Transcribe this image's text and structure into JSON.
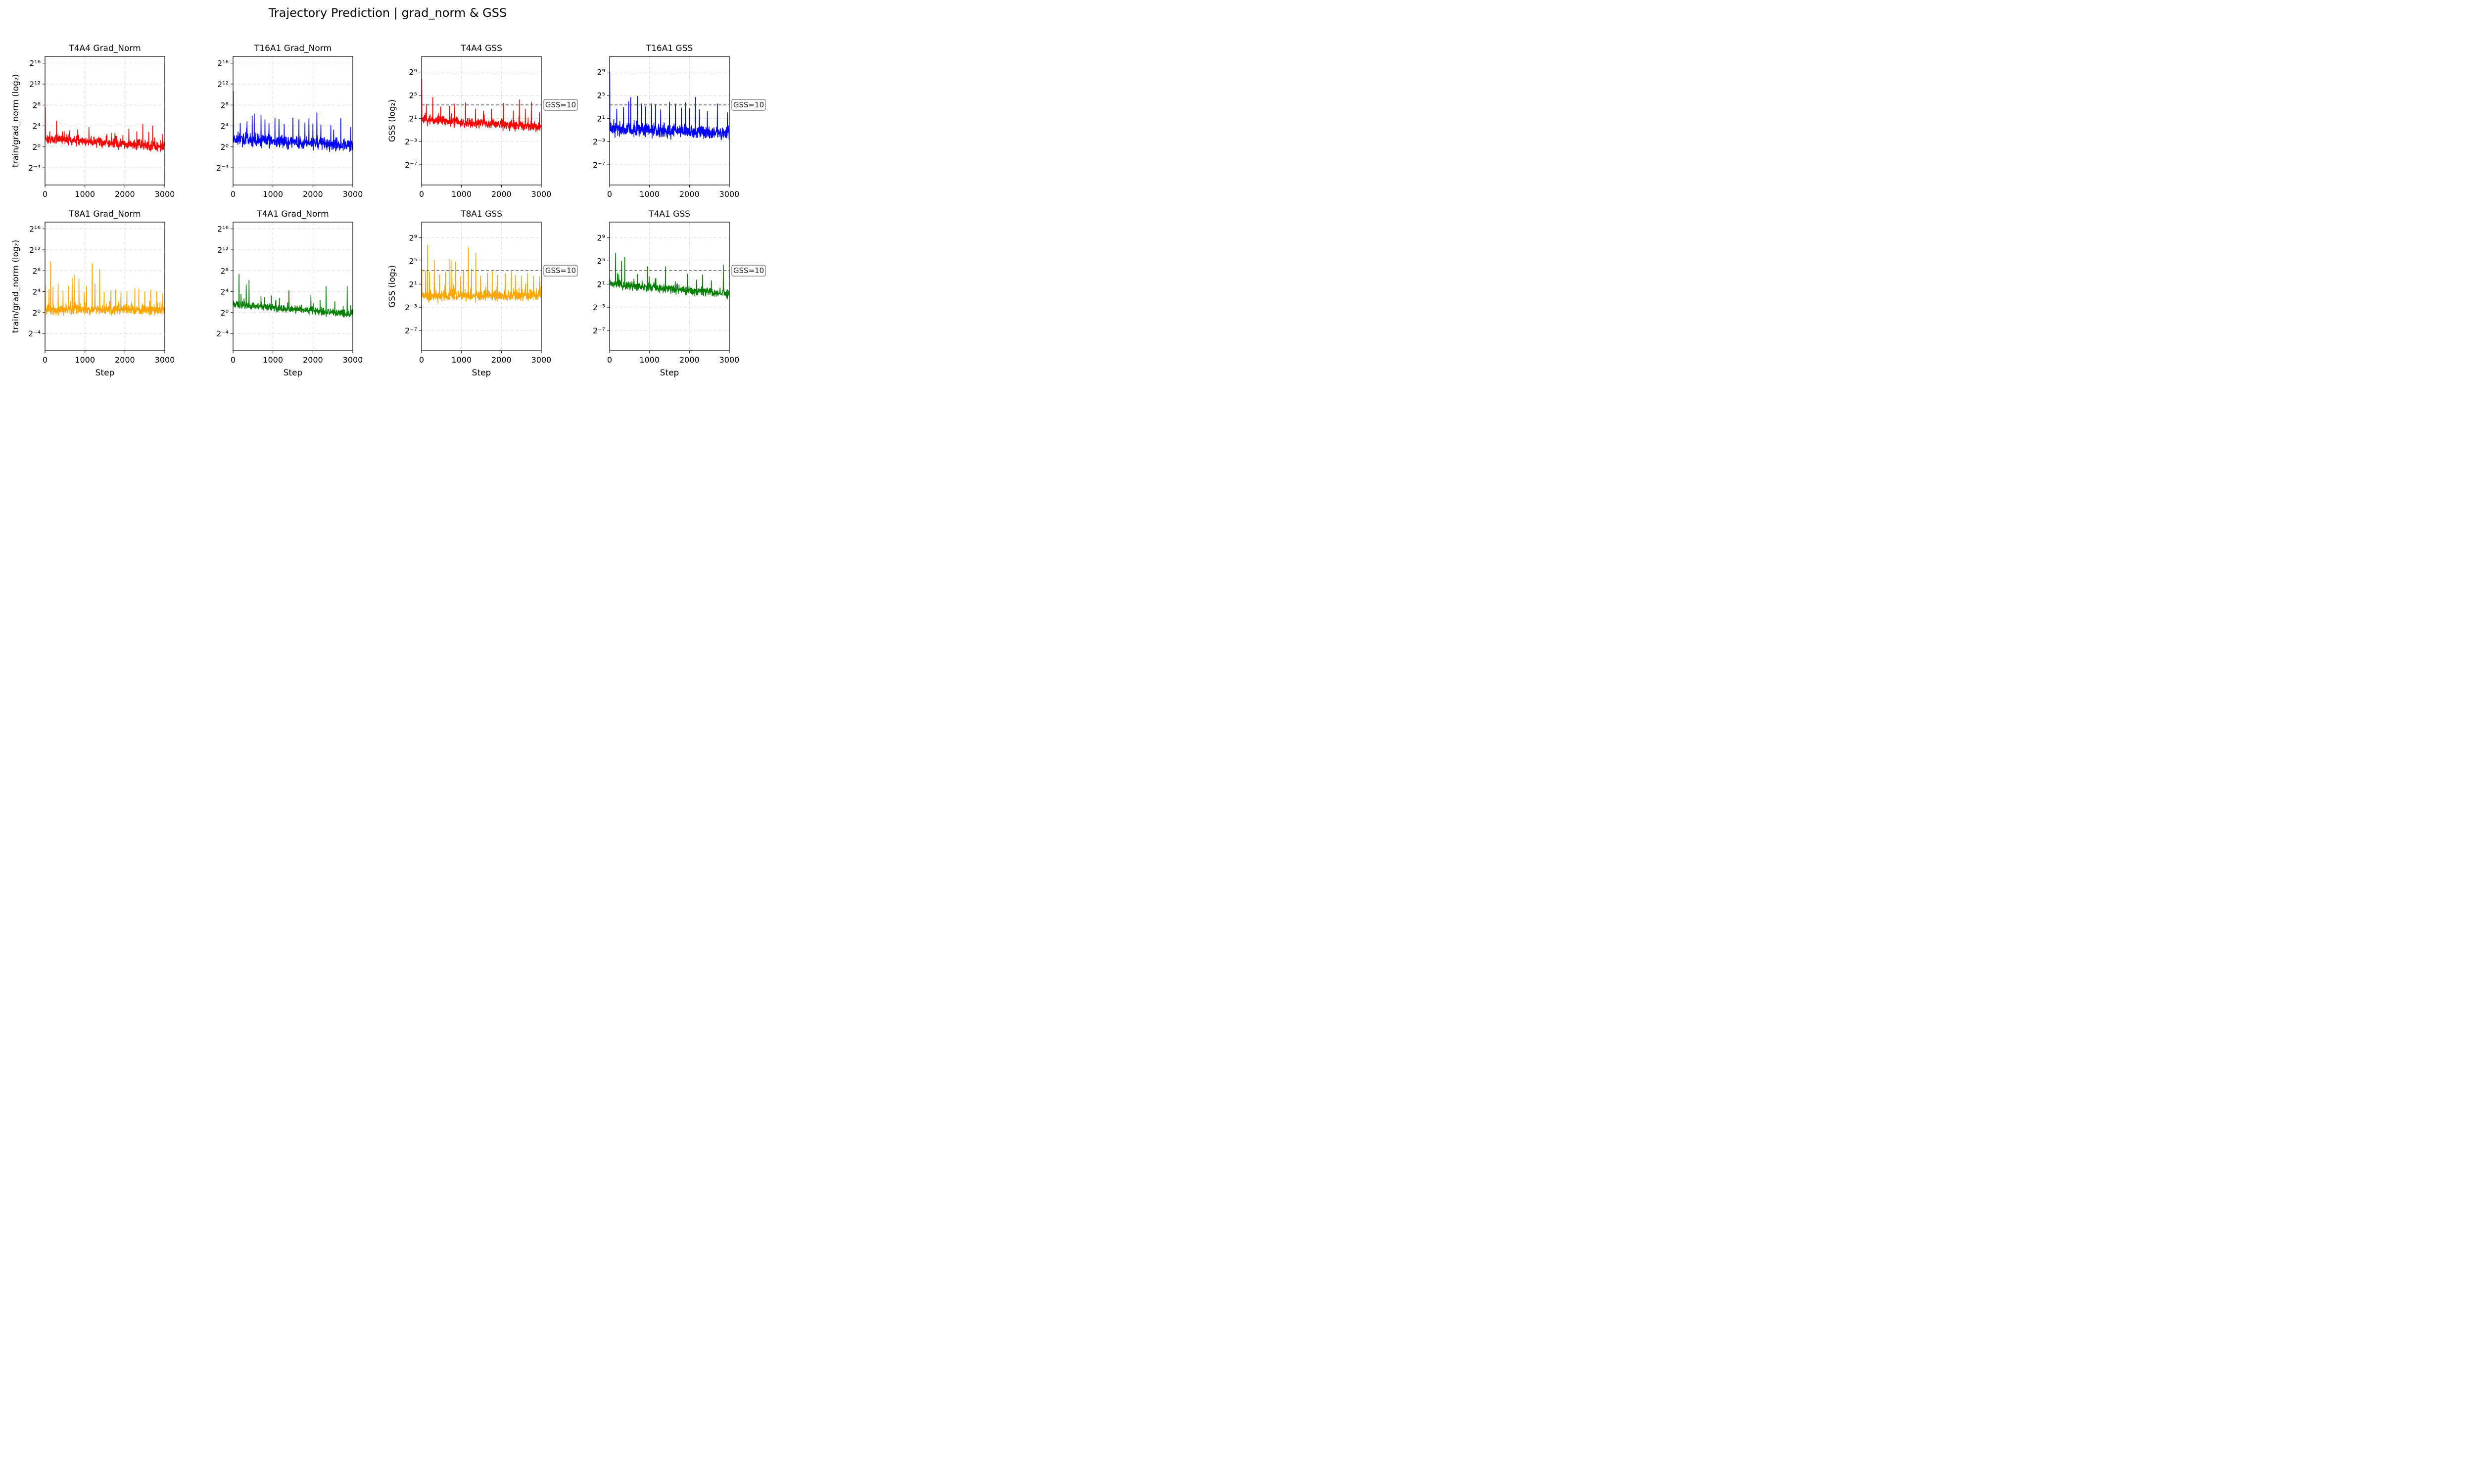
{
  "figure": {
    "title": "Trajectory Prediction | grad_norm & GSS"
  },
  "chart_data": [
    {
      "type": "line",
      "metric": "grad_norm",
      "title": "T4A4 Grad_Norm",
      "color": "#ff0000",
      "xlabel": "",
      "ylabel": "train/grad_norm (log₂)",
      "yscale": "log2",
      "xlim": [
        0,
        3000
      ],
      "ylim_log2": [
        -7.3,
        17.3
      ],
      "xticks": [
        0,
        1000,
        2000,
        3000
      ],
      "yticks_log2": [
        -4,
        0,
        4,
        8,
        12,
        16
      ],
      "series": [
        {
          "name": "T4A4",
          "summary": {
            "start_log2": 1.6,
            "end_log2": 0.0,
            "noise_log2": 0.45,
            "min_log2": -0.9
          },
          "initial_spike": [
            0,
            7.6
          ],
          "spikes": [
            [
              120,
              2.9
            ],
            [
              290,
              4.9
            ],
            [
              480,
              3.0
            ],
            [
              620,
              3.1
            ],
            [
              820,
              3.3
            ],
            [
              1100,
              3.7
            ],
            [
              1550,
              2.4
            ],
            [
              1750,
              2.6
            ],
            [
              1950,
              2.2
            ],
            [
              2100,
              3.4
            ],
            [
              2300,
              2.9
            ],
            [
              2450,
              4.3
            ],
            [
              2600,
              2.8
            ],
            [
              2700,
              4.0
            ],
            [
              2950,
              2.4
            ]
          ]
        }
      ]
    },
    {
      "type": "line",
      "metric": "grad_norm",
      "title": "T16A1 Grad_Norm",
      "color": "#0000ff",
      "xlabel": "",
      "ylabel": "",
      "yscale": "log2",
      "xlim": [
        0,
        3000
      ],
      "ylim_log2": [
        -7.3,
        17.3
      ],
      "xticks": [
        0,
        1000,
        2000,
        3000
      ],
      "yticks_log2": [
        -4,
        0,
        4,
        8,
        12,
        16
      ],
      "series": [
        {
          "name": "T16A1",
          "summary": {
            "start_log2": 1.5,
            "end_log2": 0.3,
            "noise_log2": 0.6,
            "min_log2": -1.3
          },
          "initial_spike": [
            10,
            10.6
          ],
          "spikes": [
            [
              180,
              4.5
            ],
            [
              350,
              4.8
            ],
            [
              480,
              5.9
            ],
            [
              530,
              6.3
            ],
            [
              700,
              6.1
            ],
            [
              800,
              5.2
            ],
            [
              900,
              4.5
            ],
            [
              1050,
              5.5
            ],
            [
              1150,
              5.3
            ],
            [
              1280,
              4.3
            ],
            [
              1500,
              5.5
            ],
            [
              1650,
              5.2
            ],
            [
              1800,
              4.6
            ],
            [
              1900,
              5.4
            ],
            [
              2000,
              4.4
            ],
            [
              2100,
              6.5
            ],
            [
              2200,
              4.2
            ],
            [
              2450,
              4.1
            ],
            [
              2700,
              5.4
            ],
            [
              2950,
              3.7
            ]
          ]
        }
      ]
    },
    {
      "type": "line",
      "metric": "GSS",
      "title": "T4A4 GSS",
      "color": "#ff0000",
      "xlabel": "",
      "ylabel": "GSS (log₂)",
      "yscale": "log2",
      "xlim": [
        0,
        3000
      ],
      "ylim_log2": [
        -10.5,
        11.7
      ],
      "xticks": [
        0,
        1000,
        2000,
        3000
      ],
      "yticks_log2": [
        -7,
        -3,
        1,
        5,
        9
      ],
      "reference_line": {
        "y": 10,
        "label": "GSS=10"
      },
      "series": [
        {
          "name": "T4A4",
          "summary": {
            "start_log2": 0.8,
            "end_log2": -0.5,
            "noise_log2": 0.4,
            "min_log2": -1.7
          },
          "initial_spike": [
            10,
            7.8
          ],
          "spikes": [
            [
              120,
              3.4
            ],
            [
              280,
              4.6
            ],
            [
              480,
              3.0
            ],
            [
              700,
              3.1
            ],
            [
              830,
              3.5
            ],
            [
              1100,
              3.7
            ],
            [
              1350,
              2.6
            ],
            [
              1550,
              2.3
            ],
            [
              1750,
              2.6
            ],
            [
              2050,
              3.6
            ],
            [
              2300,
              2.3
            ],
            [
              2450,
              4.2
            ],
            [
              2600,
              2.6
            ],
            [
              2750,
              3.8
            ],
            [
              2950,
              2.0
            ]
          ]
        }
      ]
    },
    {
      "type": "line",
      "metric": "GSS",
      "title": "T16A1 GSS",
      "color": "#0000ff",
      "xlabel": "",
      "ylabel": "",
      "yscale": "log2",
      "xlim": [
        0,
        3000
      ],
      "ylim_log2": [
        -10.5,
        11.7
      ],
      "xticks": [
        0,
        1000,
        2000,
        3000
      ],
      "yticks_log2": [
        -7,
        -3,
        1,
        5,
        9
      ],
      "reference_line": {
        "y": 10,
        "label": "GSS=10"
      },
      "series": [
        {
          "name": "T16A1",
          "summary": {
            "start_log2": -0.8,
            "end_log2": -1.5,
            "noise_log2": 0.55,
            "min_log2": -3.3
          },
          "initial_spike": [
            10,
            9.0
          ],
          "spikes": [
            [
              180,
              2.6
            ],
            [
              350,
              2.9
            ],
            [
              480,
              3.9
            ],
            [
              530,
              4.6
            ],
            [
              700,
              4.8
            ],
            [
              800,
              3.5
            ],
            [
              900,
              3.0
            ],
            [
              1050,
              3.5
            ],
            [
              1150,
              3.4
            ],
            [
              1280,
              2.5
            ],
            [
              1500,
              3.8
            ],
            [
              1650,
              3.5
            ],
            [
              1800,
              2.8
            ],
            [
              1900,
              3.7
            ],
            [
              2000,
              2.7
            ],
            [
              2150,
              4.6
            ],
            [
              2250,
              2.5
            ],
            [
              2450,
              2.2
            ],
            [
              2700,
              3.5
            ],
            [
              2950,
              2.0
            ]
          ]
        }
      ]
    },
    {
      "type": "line",
      "metric": "grad_norm",
      "title": "T8A1 Grad_Norm",
      "color": "#ffa500",
      "xlabel": "Step",
      "ylabel": "train/grad_norm (log₂)",
      "yscale": "log2",
      "xlim": [
        0,
        3000
      ],
      "ylim_log2": [
        -7.3,
        17.3
      ],
      "xticks": [
        0,
        1000,
        2000,
        3000
      ],
      "yticks_log2": [
        -4,
        0,
        4,
        8,
        12,
        16
      ],
      "series": [
        {
          "name": "T8A1",
          "summary": {
            "start_log2": 0.6,
            "end_log2": 0.5,
            "noise_log2": 0.45,
            "min_log2": -1.2
          },
          "initial_spike": [
            50,
            5.2
          ],
          "spikes": [
            [
              100,
              4.5
            ],
            [
              140,
              9.7
            ],
            [
              200,
              4.8
            ],
            [
              330,
              5.5
            ],
            [
              450,
              4.2
            ],
            [
              590,
              5.0
            ],
            [
              680,
              6.6
            ],
            [
              730,
              7.2
            ],
            [
              850,
              6.5
            ],
            [
              980,
              3.8
            ],
            [
              1040,
              5.0
            ],
            [
              1180,
              9.4
            ],
            [
              1250,
              5.5
            ],
            [
              1370,
              8.2
            ],
            [
              1480,
              3.9
            ],
            [
              1650,
              4.2
            ],
            [
              1770,
              4.3
            ],
            [
              1900,
              3.8
            ],
            [
              2050,
              4.0
            ],
            [
              2250,
              4.6
            ],
            [
              2350,
              4.5
            ],
            [
              2500,
              3.9
            ],
            [
              2650,
              4.3
            ],
            [
              2800,
              4.0
            ],
            [
              2950,
              3.7
            ]
          ]
        }
      ]
    },
    {
      "type": "line",
      "metric": "grad_norm",
      "title": "T4A1 Grad_Norm",
      "color": "#008000",
      "xlabel": "Step",
      "ylabel": "",
      "yscale": "log2",
      "xlim": [
        0,
        3000
      ],
      "ylim_log2": [
        -7.3,
        17.3
      ],
      "xticks": [
        0,
        1000,
        2000,
        3000
      ],
      "yticks_log2": [
        -4,
        0,
        4,
        8,
        12,
        16
      ],
      "series": [
        {
          "name": "T4A1",
          "summary": {
            "start_log2": 1.6,
            "end_log2": -0.3,
            "noise_log2": 0.35,
            "min_log2": -1.5
          },
          "initial_spike": [
            10,
            2.3
          ],
          "spikes": [
            [
              150,
              7.3
            ],
            [
              200,
              3.5
            ],
            [
              330,
              5.3
            ],
            [
              400,
              6.2
            ],
            [
              700,
              3.1
            ],
            [
              960,
              3.2
            ],
            [
              1160,
              2.7
            ],
            [
              1400,
              4.2
            ],
            [
              1950,
              3.3
            ],
            [
              2180,
              2.3
            ],
            [
              2330,
              5.0
            ],
            [
              2550,
              2.1
            ],
            [
              2860,
              5.0
            ]
          ]
        }
      ]
    },
    {
      "type": "line",
      "metric": "GSS",
      "title": "T8A1 GSS",
      "color": "#ffa500",
      "xlabel": "Step",
      "ylabel": "GSS (log₂)",
      "yscale": "log2",
      "xlim": [
        0,
        3000
      ],
      "ylim_log2": [
        -10.5,
        11.7
      ],
      "xticks": [
        0,
        1000,
        2000,
        3000
      ],
      "yticks_log2": [
        -7,
        -3,
        1,
        5,
        9
      ],
      "reference_line": {
        "y": 10,
        "label": "GSS=10"
      },
      "series": [
        {
          "name": "T8A1",
          "summary": {
            "start_log2": -1.0,
            "end_log2": -1.0,
            "noise_log2": 0.45,
            "min_log2": -2.4
          },
          "initial_spike": [
            40,
            3.7
          ],
          "spikes": [
            [
              100,
              3.2
            ],
            [
              150,
              7.7
            ],
            [
              200,
              3.0
            ],
            [
              320,
              5.1
            ],
            [
              450,
              2.6
            ],
            [
              600,
              3.1
            ],
            [
              710,
              5.3
            ],
            [
              760,
              5.0
            ],
            [
              850,
              4.8
            ],
            [
              980,
              2.3
            ],
            [
              1050,
              3.3
            ],
            [
              1170,
              7.3
            ],
            [
              1250,
              3.6
            ],
            [
              1360,
              6.3
            ],
            [
              1480,
              2.4
            ],
            [
              1650,
              2.9
            ],
            [
              1770,
              3.2
            ],
            [
              1900,
              2.5
            ],
            [
              2100,
              2.8
            ],
            [
              2250,
              3.3
            ],
            [
              2350,
              2.5
            ],
            [
              2500,
              2.4
            ],
            [
              2650,
              2.9
            ],
            [
              2800,
              2.4
            ],
            [
              2950,
              2.3
            ]
          ]
        }
      ]
    },
    {
      "type": "line",
      "metric": "GSS",
      "title": "T4A1 GSS",
      "color": "#008000",
      "xlabel": "Step",
      "ylabel": "",
      "yscale": "log2",
      "xlim": [
        0,
        3000
      ],
      "ylim_log2": [
        -10.5,
        11.7
      ],
      "xticks": [
        0,
        1000,
        2000,
        3000
      ],
      "yticks_log2": [
        -7,
        -3,
        1,
        5,
        9
      ],
      "reference_line": {
        "y": 10,
        "label": "GSS=10"
      },
      "series": [
        {
          "name": "T4A1",
          "summary": {
            "start_log2": 1.0,
            "end_log2": -0.7,
            "noise_log2": 0.35,
            "min_log2": -1.8
          },
          "initial_spike": [
            10,
            1.8
          ],
          "spikes": [
            [
              150,
              6.3
            ],
            [
              200,
              2.8
            ],
            [
              300,
              4.9
            ],
            [
              380,
              5.6
            ],
            [
              700,
              2.7
            ],
            [
              950,
              4.0
            ],
            [
              1160,
              2.0
            ],
            [
              1400,
              4.0
            ],
            [
              1950,
              2.7
            ],
            [
              2180,
              1.7
            ],
            [
              2330,
              2.6
            ],
            [
              2550,
              1.6
            ],
            [
              2850,
              4.3
            ]
          ]
        }
      ]
    }
  ]
}
